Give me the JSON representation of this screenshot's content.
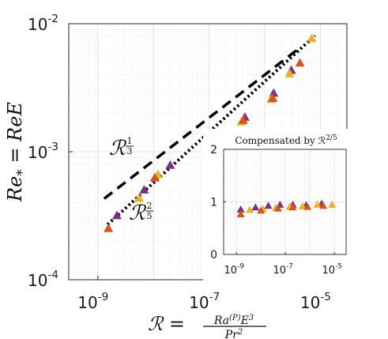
{
  "chart_data": [
    {
      "type": "scatter",
      "title": "",
      "xscale": "log",
      "yscale": "log",
      "xlim": [
        3e-10,
        3e-05
      ],
      "ylim": [
        0.0001,
        0.01
      ],
      "xticks": [
        1e-09,
        1e-07,
        1e-05
      ],
      "yticks": [
        0.0001,
        0.001,
        0.01
      ],
      "grid": true,
      "tick_labels": {
        "x": [
          {
            "base": "10",
            "exp": "-9"
          },
          {
            "base": "10",
            "exp": "-7"
          },
          {
            "base": "10",
            "exp": "-5"
          }
        ],
        "y": [
          {
            "base": "10",
            "exp": "-4"
          },
          {
            "base": "10",
            "exp": "-3"
          },
          {
            "base": "10",
            "exp": "-2"
          }
        ]
      },
      "ylabel": {
        "lhs": "Re",
        "sub": "*",
        "rhs": " = ReE"
      },
      "xlabel": {
        "lhs": "ℛ = ",
        "num_main": "Ra",
        "num_sup": "(P)",
        "num_tail": "E",
        "num_tail_sup": "3",
        "den_main": "Pr",
        "den_sup": "2"
      },
      "series": [
        {
          "color": "#7E2F8E",
          "marker": "triangle",
          "x": [
            2.2e-09,
            6.8e-09,
            2e-08,
            1.3e-07,
            4.4e-07,
            1.45e-06,
            3e-06
          ],
          "y": [
            0.000315,
            0.0005,
            0.00078,
            0.0012,
            0.00185,
            0.00285,
            0.0043
          ]
        },
        {
          "color": "#EDB120",
          "marker": "triangle",
          "x": [
            5.5e-09,
            1.2e-08,
            1e-07,
            3.8e-07,
            1.3e-06,
            2.8e-06,
            7e-06
          ],
          "y": [
            0.00043,
            0.00066,
            0.00108,
            0.0017,
            0.00255,
            0.00405,
            0.0076
          ]
        },
        {
          "color": "#D95319",
          "marker": "triangle",
          "x": [
            1.55e-09,
            1.05e-08,
            1.12e-07,
            4.1e-07,
            1.4e-06,
            4.3e-06
          ],
          "y": [
            0.00025,
            0.00062,
            0.00105,
            0.00175,
            0.0026,
            0.0049
          ]
        }
      ],
      "fit_lines": [
        {
          "style": "dashed",
          "color": "#000000",
          "x": [
            1.3e-09,
            4.3e-06
          ],
          "y": [
            0.00043,
            0.0065
          ]
        },
        {
          "style": "dotted",
          "color": "#000000",
          "x": [
            1.5e-09,
            8e-06
          ],
          "y": [
            0.00027,
            0.00806
          ]
        }
      ],
      "annotations": [
        {
          "base": "ℛ",
          "num": "1",
          "den": "3"
        },
        {
          "base": "ℛ",
          "num": "2",
          "den": "5"
        }
      ]
    },
    {
      "type": "scatter",
      "title": "Compensated by ℛ",
      "title_sup": "2/5",
      "xscale": "log",
      "xlim": [
        3e-10,
        3e-05
      ],
      "ylim": [
        0,
        2
      ],
      "xticks": [
        1e-09,
        1e-07,
        1e-05
      ],
      "yticks": [
        0,
        1,
        2
      ],
      "grid": true,
      "tick_labels": {
        "x": [
          {
            "base": "10",
            "exp": "-9"
          },
          {
            "base": "10",
            "exp": "-7"
          },
          {
            "base": "10",
            "exp": "-5"
          }
        ],
        "y": [
          "0",
          "1",
          "2"
        ]
      },
      "series": [
        {
          "color": "#7E2F8E",
          "marker": "triangle",
          "x": [
            1.5e-09,
            6e-09,
            2e-08,
            6e-08,
            2e-07,
            7e-07,
            3e-06
          ],
          "y": [
            0.85,
            0.89,
            0.92,
            0.94,
            0.94,
            0.93,
            0.96
          ]
        },
        {
          "color": "#EDB120",
          "marker": "triangle",
          "x": [
            3.5e-09,
            1.2e-08,
            4e-08,
            1.5e-07,
            5e-07,
            2e-06,
            8e-06
          ],
          "y": [
            0.84,
            0.86,
            0.88,
            0.9,
            0.91,
            0.94,
            0.94
          ]
        },
        {
          "color": "#D95319",
          "marker": "triangle",
          "x": [
            1.5e-09,
            1e-08,
            5e-08,
            2e-07,
            8e-07,
            3.5e-06
          ],
          "y": [
            0.76,
            0.83,
            0.87,
            0.89,
            0.9,
            0.92
          ]
        }
      ]
    }
  ]
}
